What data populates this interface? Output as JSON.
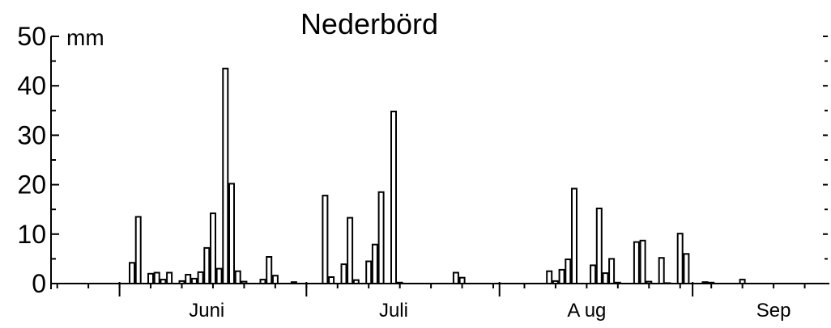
{
  "chart_data": {
    "type": "bar",
    "title": "Nederbörd",
    "unit": "mm",
    "xlabel": "",
    "ylabel": "",
    "ylim": [
      0,
      50
    ],
    "y_ticks": [
      "0",
      "10",
      "20",
      "30",
      "40",
      "50"
    ],
    "x_start": "May 21",
    "month_labels": [
      {
        "label": "Juni",
        "day": 25
      },
      {
        "label": "Juli",
        "day": 55
      },
      {
        "label": "A ug",
        "day": 86
      },
      {
        "label": "Sep",
        "day": 116
      }
    ],
    "days": [
      13,
      14,
      16,
      17,
      18,
      19,
      21,
      22,
      23,
      24,
      25,
      26,
      27,
      28,
      29,
      30,
      31,
      34,
      35,
      36,
      39,
      44,
      45,
      47,
      48,
      49,
      51,
      52,
      53,
      55,
      56,
      65,
      66,
      80,
      81,
      82,
      83,
      84,
      87,
      88,
      89,
      90,
      91,
      94,
      95,
      96,
      98,
      99,
      101,
      102,
      105,
      106,
      111
    ],
    "values": [
      4.2,
      13.5,
      2.0,
      2.2,
      0.8,
      2.2,
      0.5,
      1.8,
      1.0,
      2.3,
      7.2,
      14.2,
      3.0,
      43.5,
      20.2,
      2.5,
      0.4,
      0.8,
      5.4,
      1.6,
      0.3,
      17.8,
      1.3,
      3.9,
      13.3,
      0.7,
      4.5,
      7.9,
      18.5,
      34.8,
      0.2,
      2.2,
      1.2,
      2.5,
      0.5,
      2.8,
      4.9,
      19.2,
      3.7,
      15.2,
      2.1,
      5.0,
      0.2,
      8.4,
      8.7,
      0.4,
      5.2,
      0.1,
      10.1,
      6.0,
      0.3,
      0.2,
      0.8
    ]
  }
}
